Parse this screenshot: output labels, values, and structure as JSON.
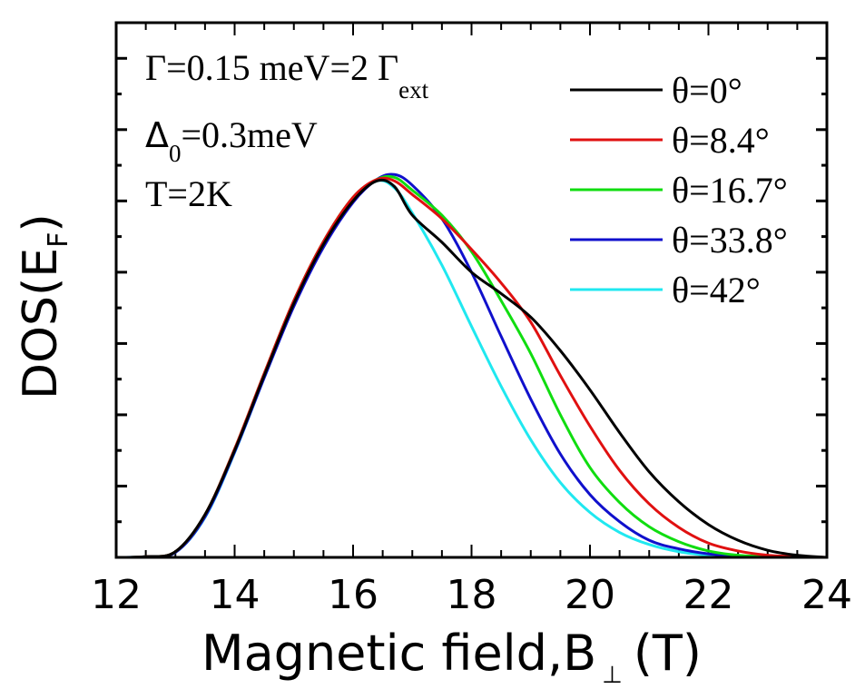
{
  "chart_data": {
    "type": "line",
    "title": "",
    "xlabel": "Magnetic field,B",
    "xlabel_subscript": "⊥",
    "xlabel_unit": "(T)",
    "ylabel": "DOS(E",
    "ylabel_subscript": "F",
    "ylabel_close": ")",
    "xlim": [
      12,
      24
    ],
    "ylim": [
      0,
      7.5
    ],
    "x_ticks": [
      12,
      14,
      16,
      18,
      20,
      22,
      24
    ],
    "x_tick_labels": [
      "12",
      "14",
      "16",
      "18",
      "20",
      "22",
      "24"
    ],
    "y_tick_labels_shown": false,
    "grid": false,
    "legend_position": "top-right",
    "annotations": {
      "line1_main": "Γ=0.15 meV=2 Γ",
      "line1_sub": "ext",
      "line2_main": "Δ",
      "line2_sub": "0",
      "line2_rest": "=0.3meV",
      "line3": "T=2K"
    },
    "x": [
      12,
      12.5,
      13,
      13.5,
      14,
      14.5,
      15,
      15.5,
      16,
      16.4,
      16.7,
      17,
      17.5,
      18,
      18.5,
      19,
      19.5,
      20,
      20.5,
      21,
      21.5,
      22,
      22.5,
      23,
      23.5,
      24
    ],
    "series": [
      {
        "name": "θ=0°",
        "color": "#000000",
        "values": [
          0,
          0.01,
          0.08,
          0.6,
          1.5,
          2.55,
          3.56,
          4.39,
          5.0,
          5.28,
          5.2,
          4.8,
          4.42,
          4.0,
          3.7,
          3.37,
          2.9,
          2.35,
          1.75,
          1.2,
          0.78,
          0.46,
          0.24,
          0.1,
          0.03,
          0
        ]
      },
      {
        "name": "θ=8.4°",
        "color": "#e01010",
        "values": [
          0,
          0.01,
          0.08,
          0.6,
          1.52,
          2.58,
          3.6,
          4.43,
          5.05,
          5.3,
          5.28,
          5.09,
          4.75,
          4.32,
          3.85,
          3.3,
          2.55,
          1.84,
          1.22,
          0.75,
          0.42,
          0.2,
          0.09,
          0.03,
          0.01,
          0
        ]
      },
      {
        "name": "θ=16.7°",
        "color": "#10dd10",
        "values": [
          0,
          0.01,
          0.08,
          0.6,
          1.52,
          2.58,
          3.6,
          4.43,
          5.05,
          5.3,
          5.33,
          5.15,
          4.8,
          4.29,
          3.6,
          2.86,
          2.0,
          1.26,
          0.77,
          0.43,
          0.22,
          0.09,
          0.03,
          0.01,
          0,
          0
        ]
      },
      {
        "name": "θ=33.8°",
        "color": "#1010cc",
        "values": [
          0,
          0.01,
          0.07,
          0.57,
          1.48,
          2.52,
          3.52,
          4.35,
          4.98,
          5.3,
          5.37,
          5.22,
          4.75,
          4.0,
          3.1,
          2.22,
          1.45,
          0.88,
          0.5,
          0.24,
          0.12,
          0.05,
          0.02,
          0.01,
          0,
          0
        ]
      },
      {
        "name": "θ=42°",
        "color": "#20e8f0",
        "values": [
          0,
          0.01,
          0.07,
          0.56,
          1.47,
          2.52,
          3.53,
          4.38,
          5.0,
          5.28,
          5.18,
          4.83,
          4.1,
          3.24,
          2.4,
          1.65,
          1.05,
          0.63,
          0.35,
          0.18,
          0.08,
          0.03,
          0.01,
          0,
          0,
          0
        ]
      }
    ]
  }
}
